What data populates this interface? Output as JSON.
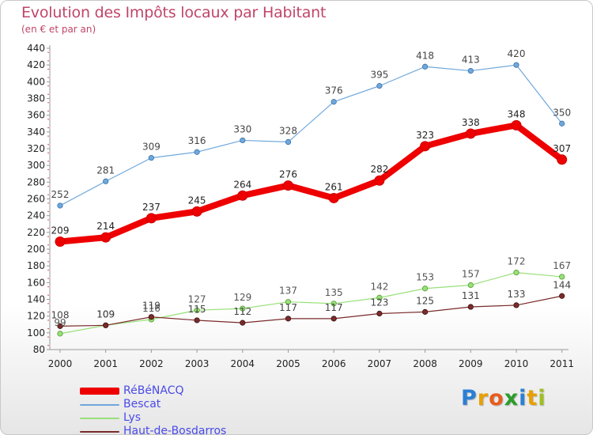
{
  "title": "Evolution des Impôts locaux par Habitant",
  "subtitle": "(en € et par an)",
  "chart_data": {
    "type": "line",
    "x": [
      "2000",
      "2001",
      "2002",
      "2003",
      "2004",
      "2005",
      "2006",
      "2007",
      "2008",
      "2009",
      "2010",
      "2011"
    ],
    "ylim": [
      80,
      440
    ],
    "yticks": [
      80,
      100,
      120,
      140,
      160,
      180,
      200,
      220,
      240,
      260,
      280,
      300,
      320,
      340,
      360,
      380,
      400,
      420,
      440
    ],
    "grid": false,
    "legend_position": "bottom-left",
    "series": [
      {
        "name": "RéBéNACQ",
        "color": "#ee0000",
        "values": [
          209,
          214,
          237,
          245,
          264,
          276,
          261,
          282,
          323,
          338,
          348,
          307
        ]
      },
      {
        "name": "Bescat",
        "color": "#6fa8dc",
        "values": [
          252,
          281,
          309,
          316,
          330,
          328,
          376,
          395,
          418,
          413,
          420,
          350
        ]
      },
      {
        "name": "Lys",
        "color": "#99e07a",
        "values": [
          99,
          109,
          116,
          127,
          129,
          137,
          135,
          142,
          153,
          157,
          172,
          167
        ]
      },
      {
        "name": "Haut-de-Bosdarros",
        "color": "#7a2b2b",
        "values": [
          108,
          109,
          119,
          115,
          112,
          117,
          117,
          123,
          125,
          131,
          133,
          144
        ]
      }
    ],
    "labels": [
      [
        "209",
        "214",
        "237",
        "245",
        "264",
        "276",
        "261",
        "282",
        "323",
        "338",
        "348",
        "307"
      ],
      [
        "252",
        "281",
        "309",
        "316",
        "330",
        "328",
        "376",
        "395",
        "418",
        "413",
        "420",
        "350"
      ],
      [
        "99",
        "109",
        "116",
        "127",
        "129",
        "137",
        "135",
        "142",
        "153",
        "157",
        "172",
        "167"
      ],
      [
        "108",
        "109",
        "119",
        "115",
        "112",
        "117",
        "117",
        "123",
        "125",
        "131",
        "133",
        "144"
      ]
    ]
  },
  "logo": {
    "text": "Proxiti",
    "letters": [
      "P",
      "r",
      "o",
      "x",
      "i",
      "t",
      "i"
    ],
    "colors": [
      "#2a7fd4",
      "#e8a000",
      "#e85c1c",
      "#2a9d2a",
      "#2a7fd4",
      "#e8a000",
      "#a0c020"
    ]
  }
}
